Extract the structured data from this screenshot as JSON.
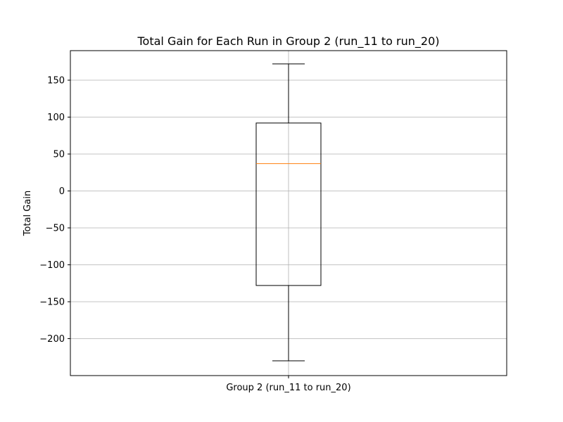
{
  "chart_data": {
    "type": "box",
    "title": "Total Gain for Each Run in Group 2 (run_11 to run_20)",
    "xlabel": "",
    "ylabel": "Total Gain",
    "categories": [
      "Group 2 (run_11 to run_20)"
    ],
    "ylim": [
      -250,
      190
    ],
    "y_ticks": [
      -200,
      -150,
      -100,
      -50,
      0,
      50,
      100,
      150
    ],
    "y_tick_labels": [
      "−200",
      "−150",
      "−100",
      "−50",
      "0",
      "50",
      "100",
      "150"
    ],
    "boxes": [
      {
        "category": "Group 2 (run_11 to run_20)",
        "whisker_low": -230,
        "q1": -128,
        "median": 37,
        "q3": 92,
        "whisker_high": 172
      }
    ],
    "grid": true,
    "colors": {
      "box": "#000000",
      "median": "#ff7f0e",
      "grid": "#b0b0b0"
    }
  }
}
